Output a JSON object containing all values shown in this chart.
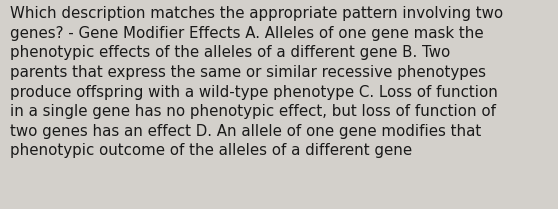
{
  "background_color": "#d3d0cb",
  "text_color": "#1a1a1a",
  "lines": [
    "Which description matches the appropriate pattern involving two",
    "genes? - Gene Modifier Effects A. Alleles of one gene mask the",
    "phenotypic effects of the alleles of a different gene B. Two",
    "parents that express the same or similar recessive phenotypes",
    "produce offspring with a wild-type phenotype C. Loss of function",
    "in a single gene has no phenotypic effect, but loss of function of",
    "two genes has an effect D. An allele of one gene modifies that",
    "phenotypic outcome of the alleles of a different gene"
  ],
  "font_size": 10.8,
  "font_family": "DejaVu Sans",
  "fig_width": 5.58,
  "fig_height": 2.09,
  "dpi": 100
}
